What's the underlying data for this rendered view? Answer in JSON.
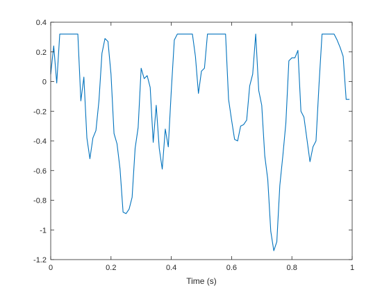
{
  "chart_data": {
    "type": "line",
    "title": "",
    "xlabel": "Time (s)",
    "ylabel": "",
    "xlim": [
      0,
      1
    ],
    "ylim": [
      -1.2,
      0.4
    ],
    "x_ticks": [
      0,
      0.2,
      0.4,
      0.6,
      0.8,
      1
    ],
    "x_tick_labels": [
      "0",
      "0.2",
      "0.4",
      "0.6",
      "0.8",
      "1"
    ],
    "y_ticks": [
      0.4,
      0.2,
      0,
      -0.2,
      -0.4,
      -0.6,
      -0.8,
      -1,
      -1.2
    ],
    "y_tick_labels": [
      "0.4",
      "0.2",
      "0",
      "-0.2",
      "-0.4",
      "-0.6",
      "-0.8",
      "-1",
      "-1.2"
    ],
    "grid": false,
    "line_color": "#0072BD",
    "series": [
      {
        "x": [
          0,
          0.01,
          0.02,
          0.03,
          0.04,
          0.05,
          0.06,
          0.07,
          0.08,
          0.09,
          0.1,
          0.11,
          0.12,
          0.13,
          0.14,
          0.15,
          0.16,
          0.17,
          0.18,
          0.19,
          0.2,
          0.21,
          0.22,
          0.23,
          0.24,
          0.25,
          0.26,
          0.27,
          0.28,
          0.29,
          0.3,
          0.31,
          0.32,
          0.33,
          0.34,
          0.35,
          0.36,
          0.37,
          0.38,
          0.39,
          0.4,
          0.41,
          0.42,
          0.43,
          0.44,
          0.45,
          0.46,
          0.47,
          0.48,
          0.49,
          0.5,
          0.51,
          0.52,
          0.53,
          0.54,
          0.55,
          0.56,
          0.57,
          0.58,
          0.59,
          0.6,
          0.61,
          0.62,
          0.63,
          0.64,
          0.65,
          0.66,
          0.67,
          0.68,
          0.69,
          0.7,
          0.71,
          0.72,
          0.73,
          0.74,
          0.75,
          0.76,
          0.77,
          0.78,
          0.79,
          0.8,
          0.81,
          0.82,
          0.83,
          0.84,
          0.85,
          0.86,
          0.87,
          0.88,
          0.89,
          0.9,
          0.91,
          0.92,
          0.93,
          0.94,
          0.95,
          0.96,
          0.97,
          0.98,
          0.99
        ],
        "y": [
          0.05,
          0.24,
          -0.01,
          0.32,
          0.32,
          0.32,
          0.32,
          0.32,
          0.32,
          0.32,
          -0.13,
          0.03,
          -0.38,
          -0.52,
          -0.38,
          -0.33,
          -0.13,
          0.19,
          0.29,
          0.27,
          0.05,
          -0.35,
          -0.42,
          -0.59,
          -0.88,
          -0.89,
          -0.86,
          -0.78,
          -0.45,
          -0.31,
          0.09,
          0.02,
          0.04,
          -0.04,
          -0.41,
          -0.16,
          -0.45,
          -0.59,
          -0.32,
          -0.44,
          -0.06,
          0.28,
          0.32,
          0.32,
          0.32,
          0.32,
          0.32,
          0.32,
          0.17,
          -0.08,
          0.07,
          0.09,
          0.32,
          0.32,
          0.32,
          0.32,
          0.32,
          0.32,
          0.32,
          -0.12,
          -0.26,
          -0.39,
          -0.4,
          -0.3,
          -0.29,
          -0.26,
          -0.03,
          0.05,
          0.32,
          -0.06,
          -0.16,
          -0.5,
          -0.66,
          -1.01,
          -1.14,
          -1.08,
          -0.7,
          -0.5,
          -0.28,
          0.14,
          0.16,
          0.16,
          0.21,
          -0.2,
          -0.24,
          -0.39,
          -0.54,
          -0.44,
          -0.4,
          -0.02,
          0.32,
          0.32,
          0.32,
          0.32,
          0.32,
          0.28,
          0.23,
          0.17,
          -0.12,
          -0.12
        ]
      }
    ]
  }
}
